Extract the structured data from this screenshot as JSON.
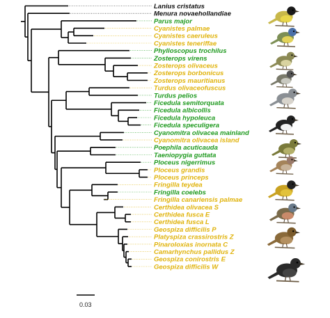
{
  "tips": [
    {
      "name": "Lanius cristatus",
      "color": "#111111"
    },
    {
      "name": "Menura novaehollandiae",
      "color": "#111111"
    },
    {
      "name": "Parus major",
      "color": "#1f9a1f"
    },
    {
      "name": "Cyanistes palmae",
      "color": "#e0b30c"
    },
    {
      "name": "Cyanistes caeruleus",
      "color": "#e0b30c"
    },
    {
      "name": "Cyanistes teneriffae",
      "color": "#e0b30c"
    },
    {
      "name": "Phylloscopus trochilus",
      "color": "#1f9a1f"
    },
    {
      "name": "Zosterops virens",
      "color": "#1f9a1f"
    },
    {
      "name": "Zosterops olivaceus",
      "color": "#e0b30c"
    },
    {
      "name": "Zosterops borbonicus",
      "color": "#e0b30c"
    },
    {
      "name": "Zosterops mauritianus",
      "color": "#e0b30c"
    },
    {
      "name": "Turdus olivaceofuscus",
      "color": "#e0b30c"
    },
    {
      "name": "Turdus pelios",
      "color": "#1f9a1f"
    },
    {
      "name": "Ficedula semitorquata",
      "color": "#1f9a1f"
    },
    {
      "name": "Ficedula albicollis",
      "color": "#1f9a1f"
    },
    {
      "name": "Ficedula hypoleuca",
      "color": "#1f9a1f"
    },
    {
      "name": "Ficedula speculigera",
      "color": "#1f9a1f"
    },
    {
      "name": "Cyanomitra olivacea mainland",
      "color": "#1f9a1f"
    },
    {
      "name": "Cyanomitra olivacea island",
      "color": "#e0b30c"
    },
    {
      "name": "Poephila acuticauda",
      "color": "#1f9a1f"
    },
    {
      "name": "Taeniopygia guttata",
      "color": "#1f9a1f"
    },
    {
      "name": "Ploceus nigerrimus",
      "color": "#1f9a1f"
    },
    {
      "name": "Ploceus grandis",
      "color": "#e0b30c"
    },
    {
      "name": "Ploceus princeps",
      "color": "#e0b30c"
    },
    {
      "name": "Fringilla teydea",
      "color": "#e0b30c"
    },
    {
      "name": "Fringilla coelebs",
      "color": "#1f9a1f"
    },
    {
      "name": "Fringilla canariensis palmae",
      "color": "#e0b30c"
    },
    {
      "name": "Certhidea olivacea S",
      "color": "#e0b30c"
    },
    {
      "name": "Certhidea fusca E",
      "color": "#e0b30c"
    },
    {
      "name": "Certhidea fusca L",
      "color": "#e0b30c"
    },
    {
      "name": "Geospiza difficilis P",
      "color": "#e0b30c"
    },
    {
      "name": "Platyspiza crassirostris Z",
      "color": "#e0b30c"
    },
    {
      "name": "Pinaroloxias inornata C",
      "color": "#e0b30c"
    },
    {
      "name": "Camarhynchus pallidus Z",
      "color": "#e0b30c"
    },
    {
      "name": "Geospiza conirostris E",
      "color": "#e0b30c"
    },
    {
      "name": "Geospiza difficilis W",
      "color": "#e0b30c"
    }
  ],
  "scale_bar": {
    "label": "0.03"
  },
  "bird_images": [
    {
      "name": "great-tit-icon",
      "colors": {
        "body": "#c8b84a",
        "head": "#1a1a1a",
        "belly": "#e8d64a"
      }
    },
    {
      "name": "blue-tit-icon",
      "colors": {
        "body": "#7d8f55",
        "head": "#4a6fa8",
        "belly": "#e3d35a"
      }
    },
    {
      "name": "warbler-icon",
      "colors": {
        "body": "#8c8a55",
        "head": "#8c8a55",
        "belly": "#d9d3a0"
      }
    },
    {
      "name": "white-eye-icon",
      "colors": {
        "body": "#7a7a6a",
        "head": "#555555",
        "belly": "#c9c9c0"
      }
    },
    {
      "name": "thrush-icon",
      "colors": {
        "body": "#8a8f94",
        "head": "#8a8f94",
        "belly": "#d8d4cc"
      }
    },
    {
      "name": "flycatcher-icon",
      "colors": {
        "body": "#222222",
        "head": "#222222",
        "belly": "#f2f2f2"
      }
    },
    {
      "name": "sunbird-icon",
      "colors": {
        "body": "#7a7a3a",
        "head": "#7a7a3a",
        "belly": "#b4b06a"
      }
    },
    {
      "name": "finch-icon",
      "colors": {
        "body": "#a5845a",
        "head": "#9a7a6a",
        "belly": "#c9b49a"
      }
    },
    {
      "name": "weaver-icon",
      "colors": {
        "body": "#c9a222",
        "head": "#222222",
        "belly": "#e2c23a"
      }
    },
    {
      "name": "chaffinch-icon",
      "colors": {
        "body": "#7a6a4a",
        "head": "#6a7a8a",
        "belly": "#c98a6a"
      }
    },
    {
      "name": "darwin-finch-brown-icon",
      "colors": {
        "body": "#8a6a3a",
        "head": "#7a5a2a",
        "belly": "#b49060"
      }
    },
    {
      "name": "darwin-finch-dark-icon",
      "colors": {
        "body": "#2a2a2a",
        "head": "#2a2a2a",
        "belly": "#444444"
      }
    }
  ]
}
